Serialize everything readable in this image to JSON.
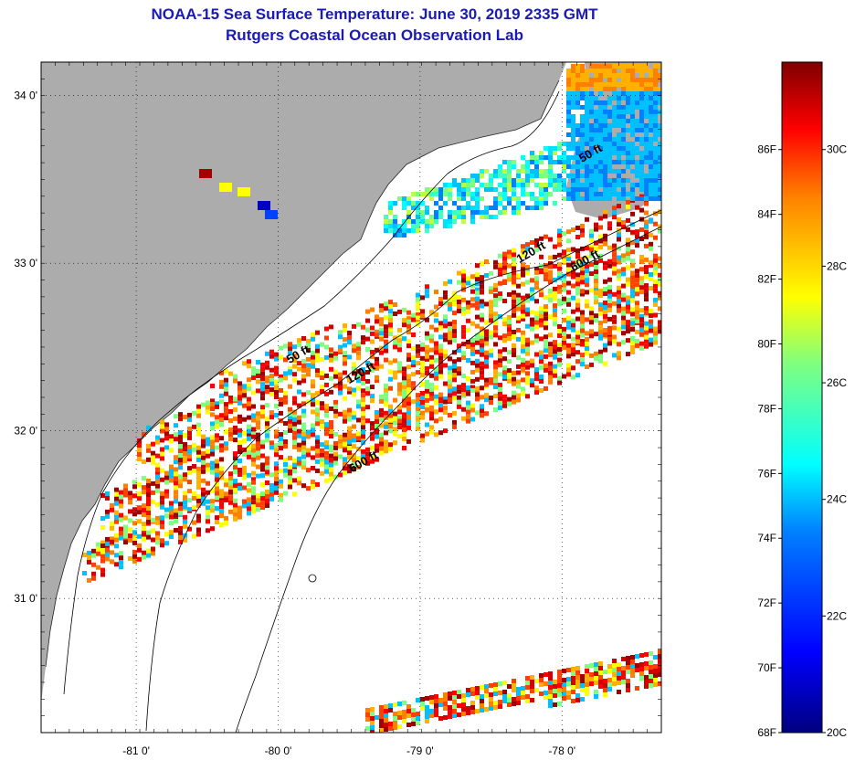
{
  "title_line1": "NOAA-15 Sea Surface Temperature:  June 30, 2019 2335 GMT",
  "title_line2": "Rutgers Coastal Ocean Observation Lab",
  "map": {
    "lat_ticks": [
      {
        "value": 34,
        "label": "34 0'"
      },
      {
        "value": 33,
        "label": "33 0'"
      },
      {
        "value": 32,
        "label": "32 0'"
      },
      {
        "value": 31,
        "label": "31 0'"
      }
    ],
    "lon_ticks": [
      {
        "value": -81,
        "label": "-81 0'"
      },
      {
        "value": -80,
        "label": "-80 0'"
      },
      {
        "value": -79,
        "label": "-79 0'"
      },
      {
        "value": -78,
        "label": "-78 0'"
      }
    ],
    "lon_range": [
      -81.67,
      -77.3
    ],
    "lat_range": [
      30.2,
      34.2
    ],
    "contour_labels": [
      {
        "text": "50 ft",
        "lon": -77.86,
        "lat": 33.6
      },
      {
        "text": "120 ft",
        "lon": -78.3,
        "lat": 33.0
      },
      {
        "text": "600 ft",
        "lon": -77.92,
        "lat": 32.95
      },
      {
        "text": "50 ft",
        "lon": -79.92,
        "lat": 32.4
      },
      {
        "text": "120 ft",
        "lon": -79.5,
        "lat": 32.28
      },
      {
        "text": "600 ft",
        "lon": -79.48,
        "lat": 31.75
      }
    ],
    "colors": {
      "land": "#acacac",
      "ocean_nodata": "#ffffff"
    }
  },
  "colorbar": {
    "min_c": 20,
    "max_c": 31.5,
    "fahrenheit_labels": [
      "86F",
      "84F",
      "82F",
      "80F",
      "78F",
      "76F",
      "74F",
      "72F",
      "70F",
      "68F"
    ],
    "fahrenheit_values": [
      86,
      84,
      82,
      80,
      78,
      76,
      74,
      72,
      70,
      68
    ],
    "celsius_labels": [
      "30C",
      "28C",
      "26C",
      "24C",
      "22C",
      "20C"
    ],
    "celsius_values": [
      30,
      28,
      26,
      24,
      22,
      20
    ]
  }
}
